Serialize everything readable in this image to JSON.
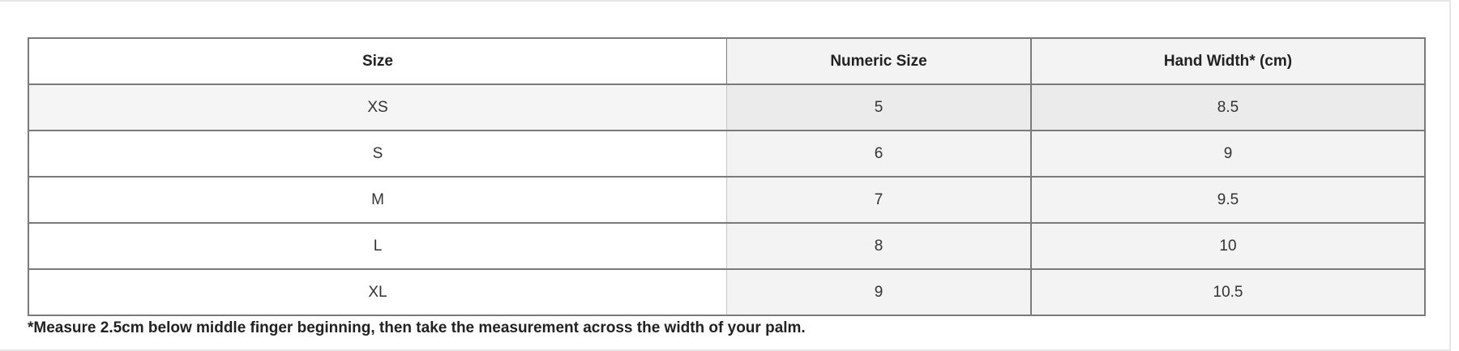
{
  "table": {
    "headers": [
      "Size",
      "Numeric Size",
      "Hand Width* (cm)"
    ],
    "rows": [
      [
        "XS",
        "5",
        "8.5"
      ],
      [
        "S",
        "6",
        "9"
      ],
      [
        "M",
        "7",
        "9.5"
      ],
      [
        "L",
        "8",
        "10"
      ],
      [
        "XL",
        "9",
        "10.5"
      ]
    ]
  },
  "footnote": "*Measure 2.5cm below middle finger beginning, then take the measurement across the width of your palm."
}
